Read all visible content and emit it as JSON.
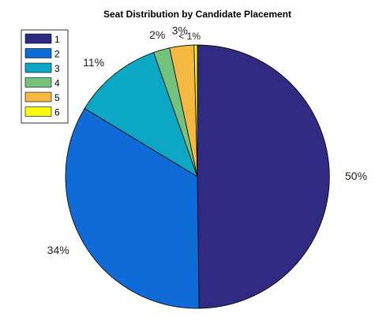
{
  "chart_data": {
    "type": "pie",
    "title": "Seat Distribution by Candidate Placement",
    "categories": [
      "1",
      "2",
      "3",
      "4",
      "5",
      "6"
    ],
    "values": [
      50,
      34,
      11,
      2,
      3,
      0.4
    ],
    "labels": [
      "50%",
      "34%",
      "11%",
      "2%",
      "3%",
      "< 1%"
    ],
    "colors": [
      "#312a83",
      "#0f6bd8",
      "#0ba7c4",
      "#73c27e",
      "#f5b841",
      "#f9f812"
    ],
    "start_angle_deg": 90,
    "direction": "clockwise",
    "legend": {
      "position": "top-left",
      "entries": [
        "1",
        "2",
        "3",
        "4",
        "5",
        "6"
      ]
    }
  }
}
